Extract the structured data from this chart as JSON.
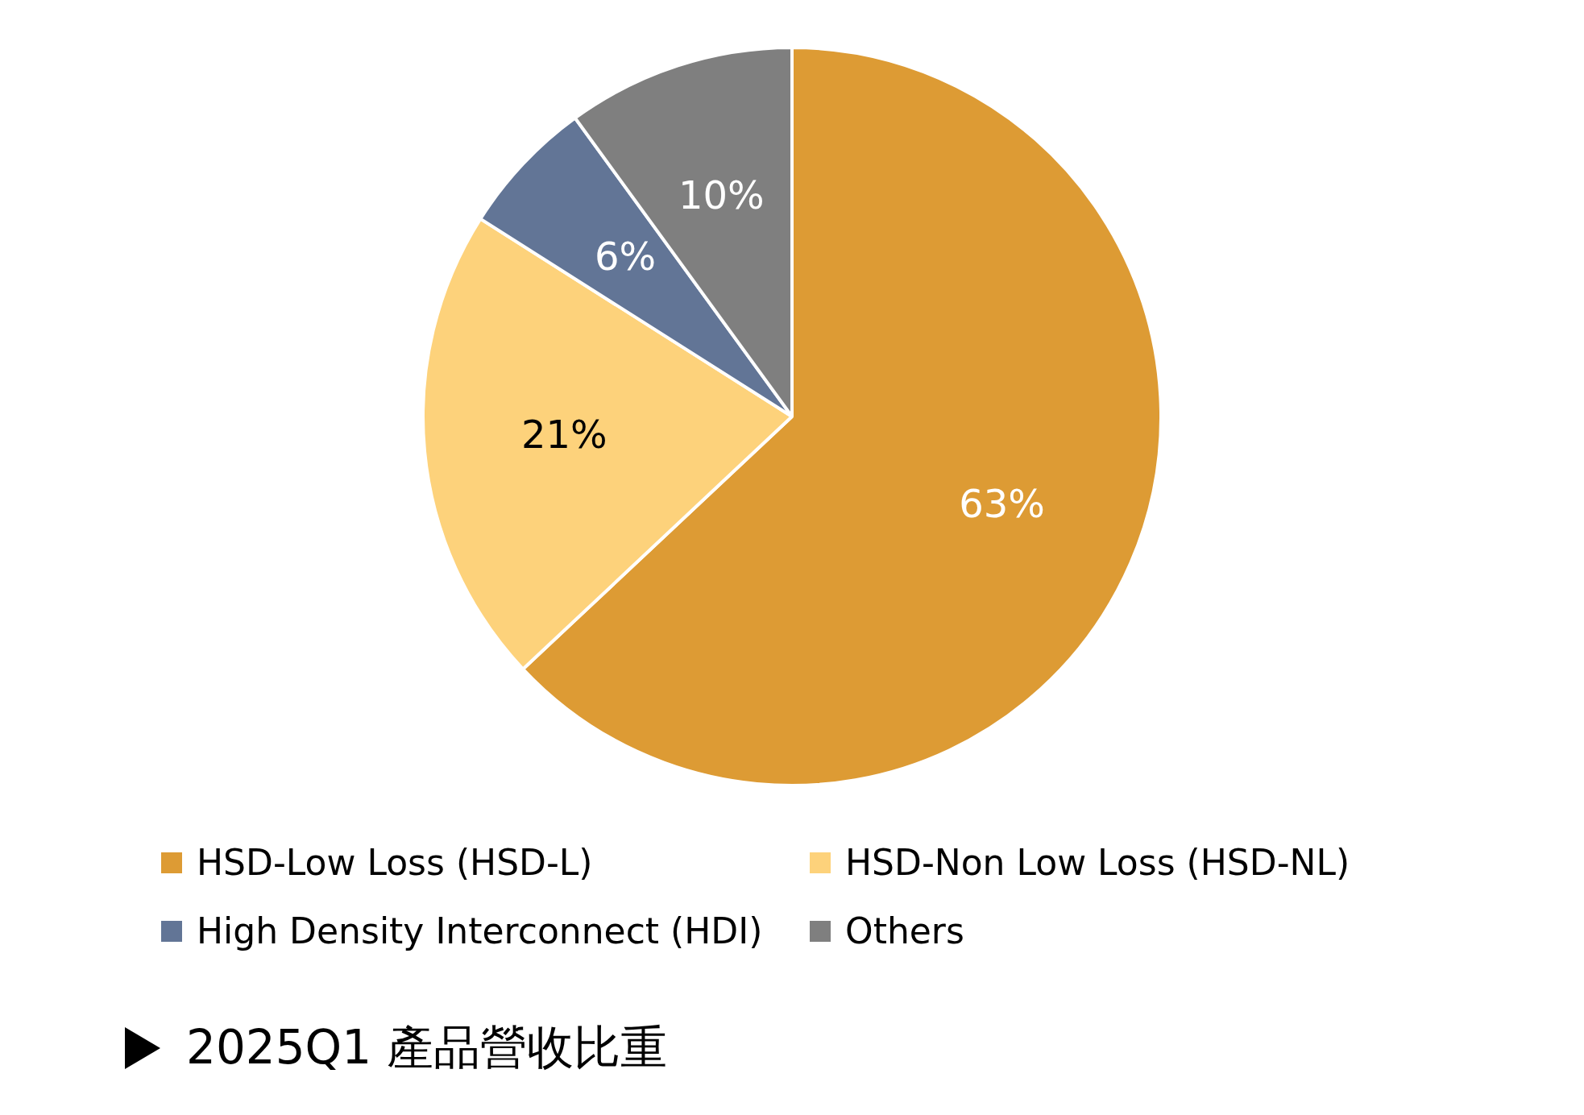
{
  "chart_data": {
    "type": "pie",
    "title": "2025Q1 產品營收比重",
    "categories": [
      "HSD-Low Loss (HSD-L)",
      "HSD-Non Low Loss (HSD-NL)",
      "High Density Interconnect (HDI)",
      "Others"
    ],
    "values": [
      63,
      21,
      6,
      10
    ],
    "colors": [
      "#dd9b34",
      "#fdd27b",
      "#627596",
      "#7f7f7f"
    ],
    "value_labels": [
      "63%",
      "21%",
      "6%",
      "10%"
    ],
    "legend": "bottom"
  }
}
